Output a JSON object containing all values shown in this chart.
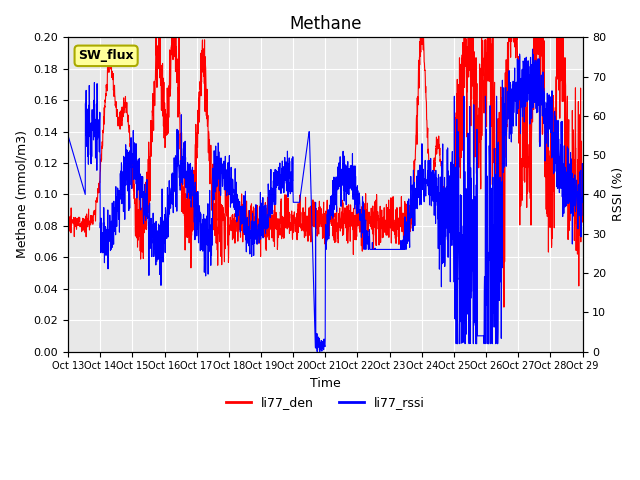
{
  "title": "Methane",
  "xlabel": "Time",
  "ylabel_left": "Methane (mmol/m3)",
  "ylabel_right": "RSSI (%)",
  "ylim_left": [
    0.0,
    0.2
  ],
  "ylim_right": [
    0,
    80
  ],
  "yticks_left": [
    0.0,
    0.02,
    0.04,
    0.06,
    0.08,
    0.1,
    0.12,
    0.14,
    0.16,
    0.18,
    0.2
  ],
  "yticks_right": [
    0,
    10,
    20,
    30,
    40,
    50,
    60,
    70,
    80
  ],
  "xtick_labels": [
    "Oct 13",
    "Oct 14",
    "Oct 15",
    "Oct 16",
    "Oct 17",
    "Oct 18",
    "Oct 19",
    "Oct 20",
    "Oct 21",
    "Oct 22",
    "Oct 23",
    "Oct 24",
    "Oct 25",
    "Oct 26",
    "Oct 27",
    "Oct 28",
    "Oct 29"
  ],
  "legend_labels": [
    "li77_den",
    "li77_rssi"
  ],
  "line_color_red": "#FF0000",
  "line_color_blue": "#0000FF",
  "bg_color": "#E8E8E8",
  "annotation_text": "SW_flux",
  "annotation_bg": "#FFFF99",
  "annotation_border": "#AAAA00",
  "grid_color": "#FFFFFF",
  "title_fontsize": 12,
  "label_fontsize": 9,
  "tick_fontsize": 8
}
